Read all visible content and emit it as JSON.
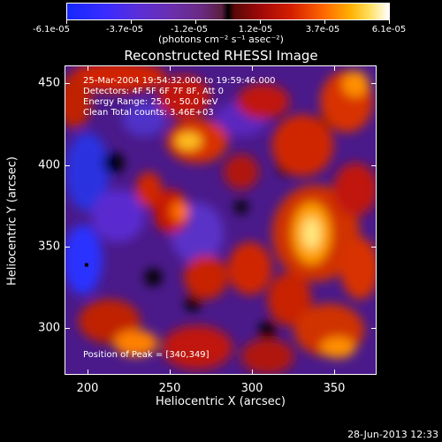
{
  "colorbar": {
    "labels": [
      "-6.1e-05",
      "-3.7e-05",
      "-1.2e-05",
      "1.2e-05",
      "3.7e-05",
      "6.1e-05"
    ],
    "units": "(photons cm⁻² s⁻¹ asec⁻²)"
  },
  "title": "Reconstructed RHESSI Image",
  "info": {
    "time": "25-Mar-2004 19:54:32.000 to 19:59:46.000",
    "detectors": "Detectors: 4F 5F 6F 7F 8F, Att 0",
    "energy": "Energy Range: 25.0 - 50.0 keV",
    "clean": "Clean     Total counts: 3.46E+03",
    "peak": "Position of Peak = [340,349]"
  },
  "axes": {
    "xlabel": "Heliocentric X (arcsec)",
    "ylabel": "Heliocentric Y (arcsec)",
    "xticks": [
      "200",
      "250",
      "300",
      "350"
    ],
    "yticks": [
      "450",
      "400",
      "350",
      "300"
    ],
    "xrange": [
      186,
      376
    ],
    "yrange": [
      264,
      462
    ]
  },
  "footer_date": "28-Jun-2013 12:33",
  "colors": {
    "low": "#1428ff",
    "mid": "#000000",
    "high": "#ffffff"
  }
}
